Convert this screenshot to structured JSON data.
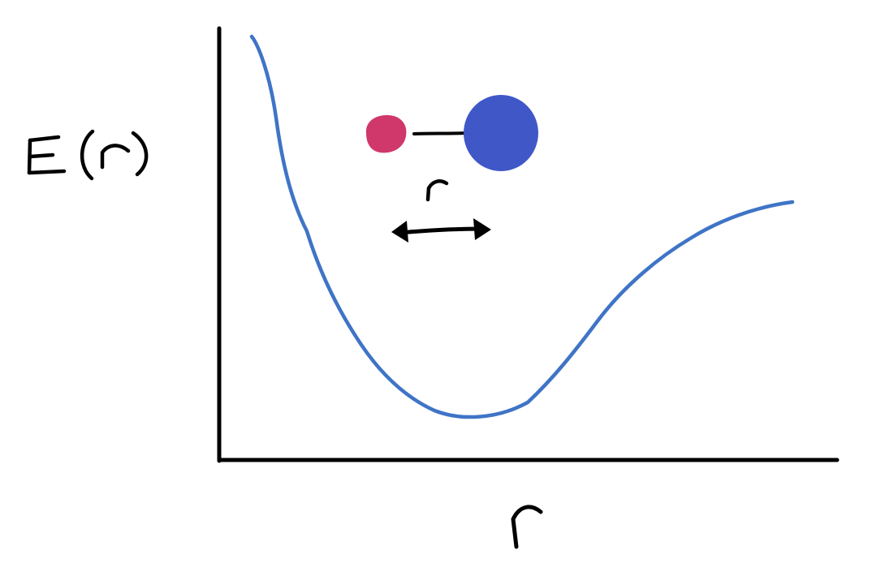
{
  "diagram": {
    "ylabel": "E(r)",
    "xlabel": "r",
    "bond_length_label": "r"
  },
  "colors": {
    "background": "#ffffff",
    "axes": "#000000",
    "curve": "#3f74c6",
    "small_atom": "#d0386b",
    "large_atom": "#4057c8",
    "bond": "#000000",
    "arrow": "#000000"
  }
}
